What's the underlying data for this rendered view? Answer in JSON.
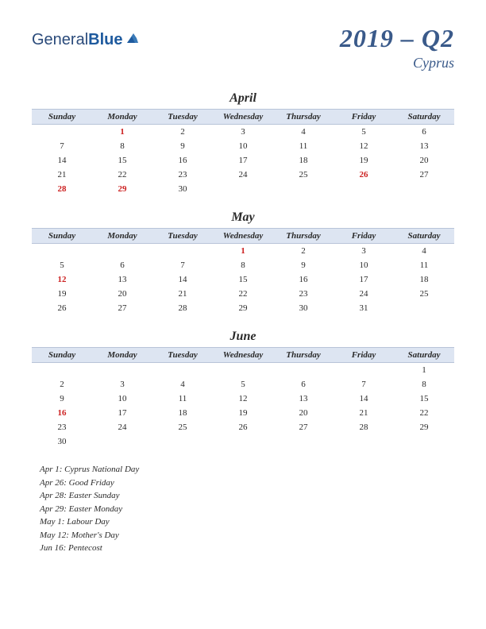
{
  "logo": {
    "part1": "General",
    "part2": "Blue"
  },
  "title": {
    "main": "2019 – Q2",
    "sub": "Cyprus"
  },
  "daynames": [
    "Sunday",
    "Monday",
    "Tuesday",
    "Wednesday",
    "Thursday",
    "Friday",
    "Saturday"
  ],
  "colors": {
    "header_bg": "#dde5f2",
    "holiday": "#cc2020",
    "title": "#3a5a8a",
    "text": "#2a2a2a"
  },
  "months": [
    {
      "name": "April",
      "weeks": [
        [
          "",
          "1",
          "2",
          "3",
          "4",
          "5",
          "6"
        ],
        [
          "7",
          "8",
          "9",
          "10",
          "11",
          "12",
          "13"
        ],
        [
          "14",
          "15",
          "16",
          "17",
          "18",
          "19",
          "20"
        ],
        [
          "21",
          "22",
          "23",
          "24",
          "25",
          "26",
          "27"
        ],
        [
          "28",
          "29",
          "30",
          "",
          "",
          "",
          ""
        ]
      ],
      "holidays": [
        "1",
        "26",
        "28",
        "29"
      ]
    },
    {
      "name": "May",
      "weeks": [
        [
          "",
          "",
          "",
          "1",
          "2",
          "3",
          "4"
        ],
        [
          "5",
          "6",
          "7",
          "8",
          "9",
          "10",
          "11"
        ],
        [
          "12",
          "13",
          "14",
          "15",
          "16",
          "17",
          "18"
        ],
        [
          "19",
          "20",
          "21",
          "22",
          "23",
          "24",
          "25"
        ],
        [
          "26",
          "27",
          "28",
          "29",
          "30",
          "31",
          ""
        ]
      ],
      "holidays": [
        "1",
        "12"
      ]
    },
    {
      "name": "June",
      "weeks": [
        [
          "",
          "",
          "",
          "",
          "",
          "",
          "1"
        ],
        [
          "2",
          "3",
          "4",
          "5",
          "6",
          "7",
          "8"
        ],
        [
          "9",
          "10",
          "11",
          "12",
          "13",
          "14",
          "15"
        ],
        [
          "16",
          "17",
          "18",
          "19",
          "20",
          "21",
          "22"
        ],
        [
          "23",
          "24",
          "25",
          "26",
          "27",
          "28",
          "29"
        ],
        [
          "30",
          "",
          "",
          "",
          "",
          "",
          ""
        ]
      ],
      "holidays": [
        "16"
      ]
    }
  ],
  "holiday_list": [
    "Apr 1: Cyprus National Day",
    "Apr 26: Good Friday",
    "Apr 28: Easter Sunday",
    "Apr 29: Easter Monday",
    "May 1: Labour Day",
    "May 12: Mother's Day",
    "Jun 16: Pentecost"
  ]
}
